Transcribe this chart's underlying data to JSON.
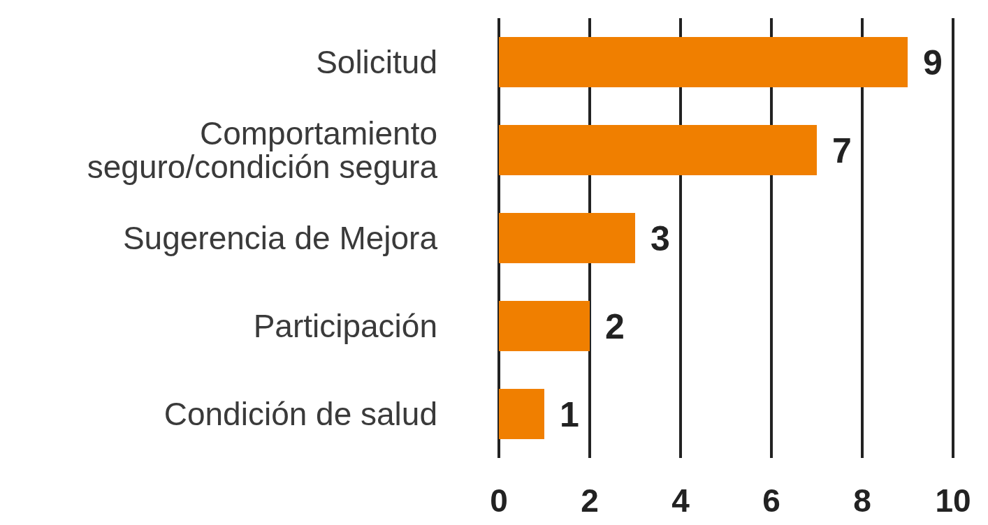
{
  "chart_data": {
    "type": "bar",
    "orientation": "horizontal",
    "categories": [
      "Solicitud",
      "Comportamiento seguro/condición segura",
      "Sugerencia de Mejora",
      "Participación",
      "Condición de salud"
    ],
    "values": [
      9,
      7,
      3,
      2,
      1
    ],
    "color": "#f07f00",
    "xlim": [
      0,
      10
    ],
    "xticks": [
      0,
      2,
      4,
      6,
      8,
      10
    ],
    "grid": "x",
    "data_labels": true
  }
}
